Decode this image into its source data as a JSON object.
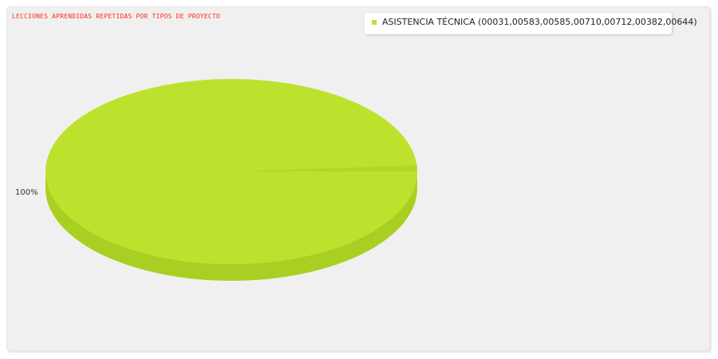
{
  "chart_data": {
    "type": "pie",
    "style": "3d",
    "title": "LECCIONES APRENDIDAS REPETIDAS POR TIPOS DE PROYECTO",
    "categories": [
      "ASISTENCIA TÉCNICA (00031,00583,00585,00710,00712,00382,00644)"
    ],
    "values": [
      100
    ],
    "data_labels": [
      "100%"
    ],
    "colors": [
      "#bde22e"
    ],
    "side_color": "#a9cf22",
    "title_color": "#ff2a2a",
    "background": "#f0f0f0",
    "legend_position": "top-right",
    "grid": false
  }
}
